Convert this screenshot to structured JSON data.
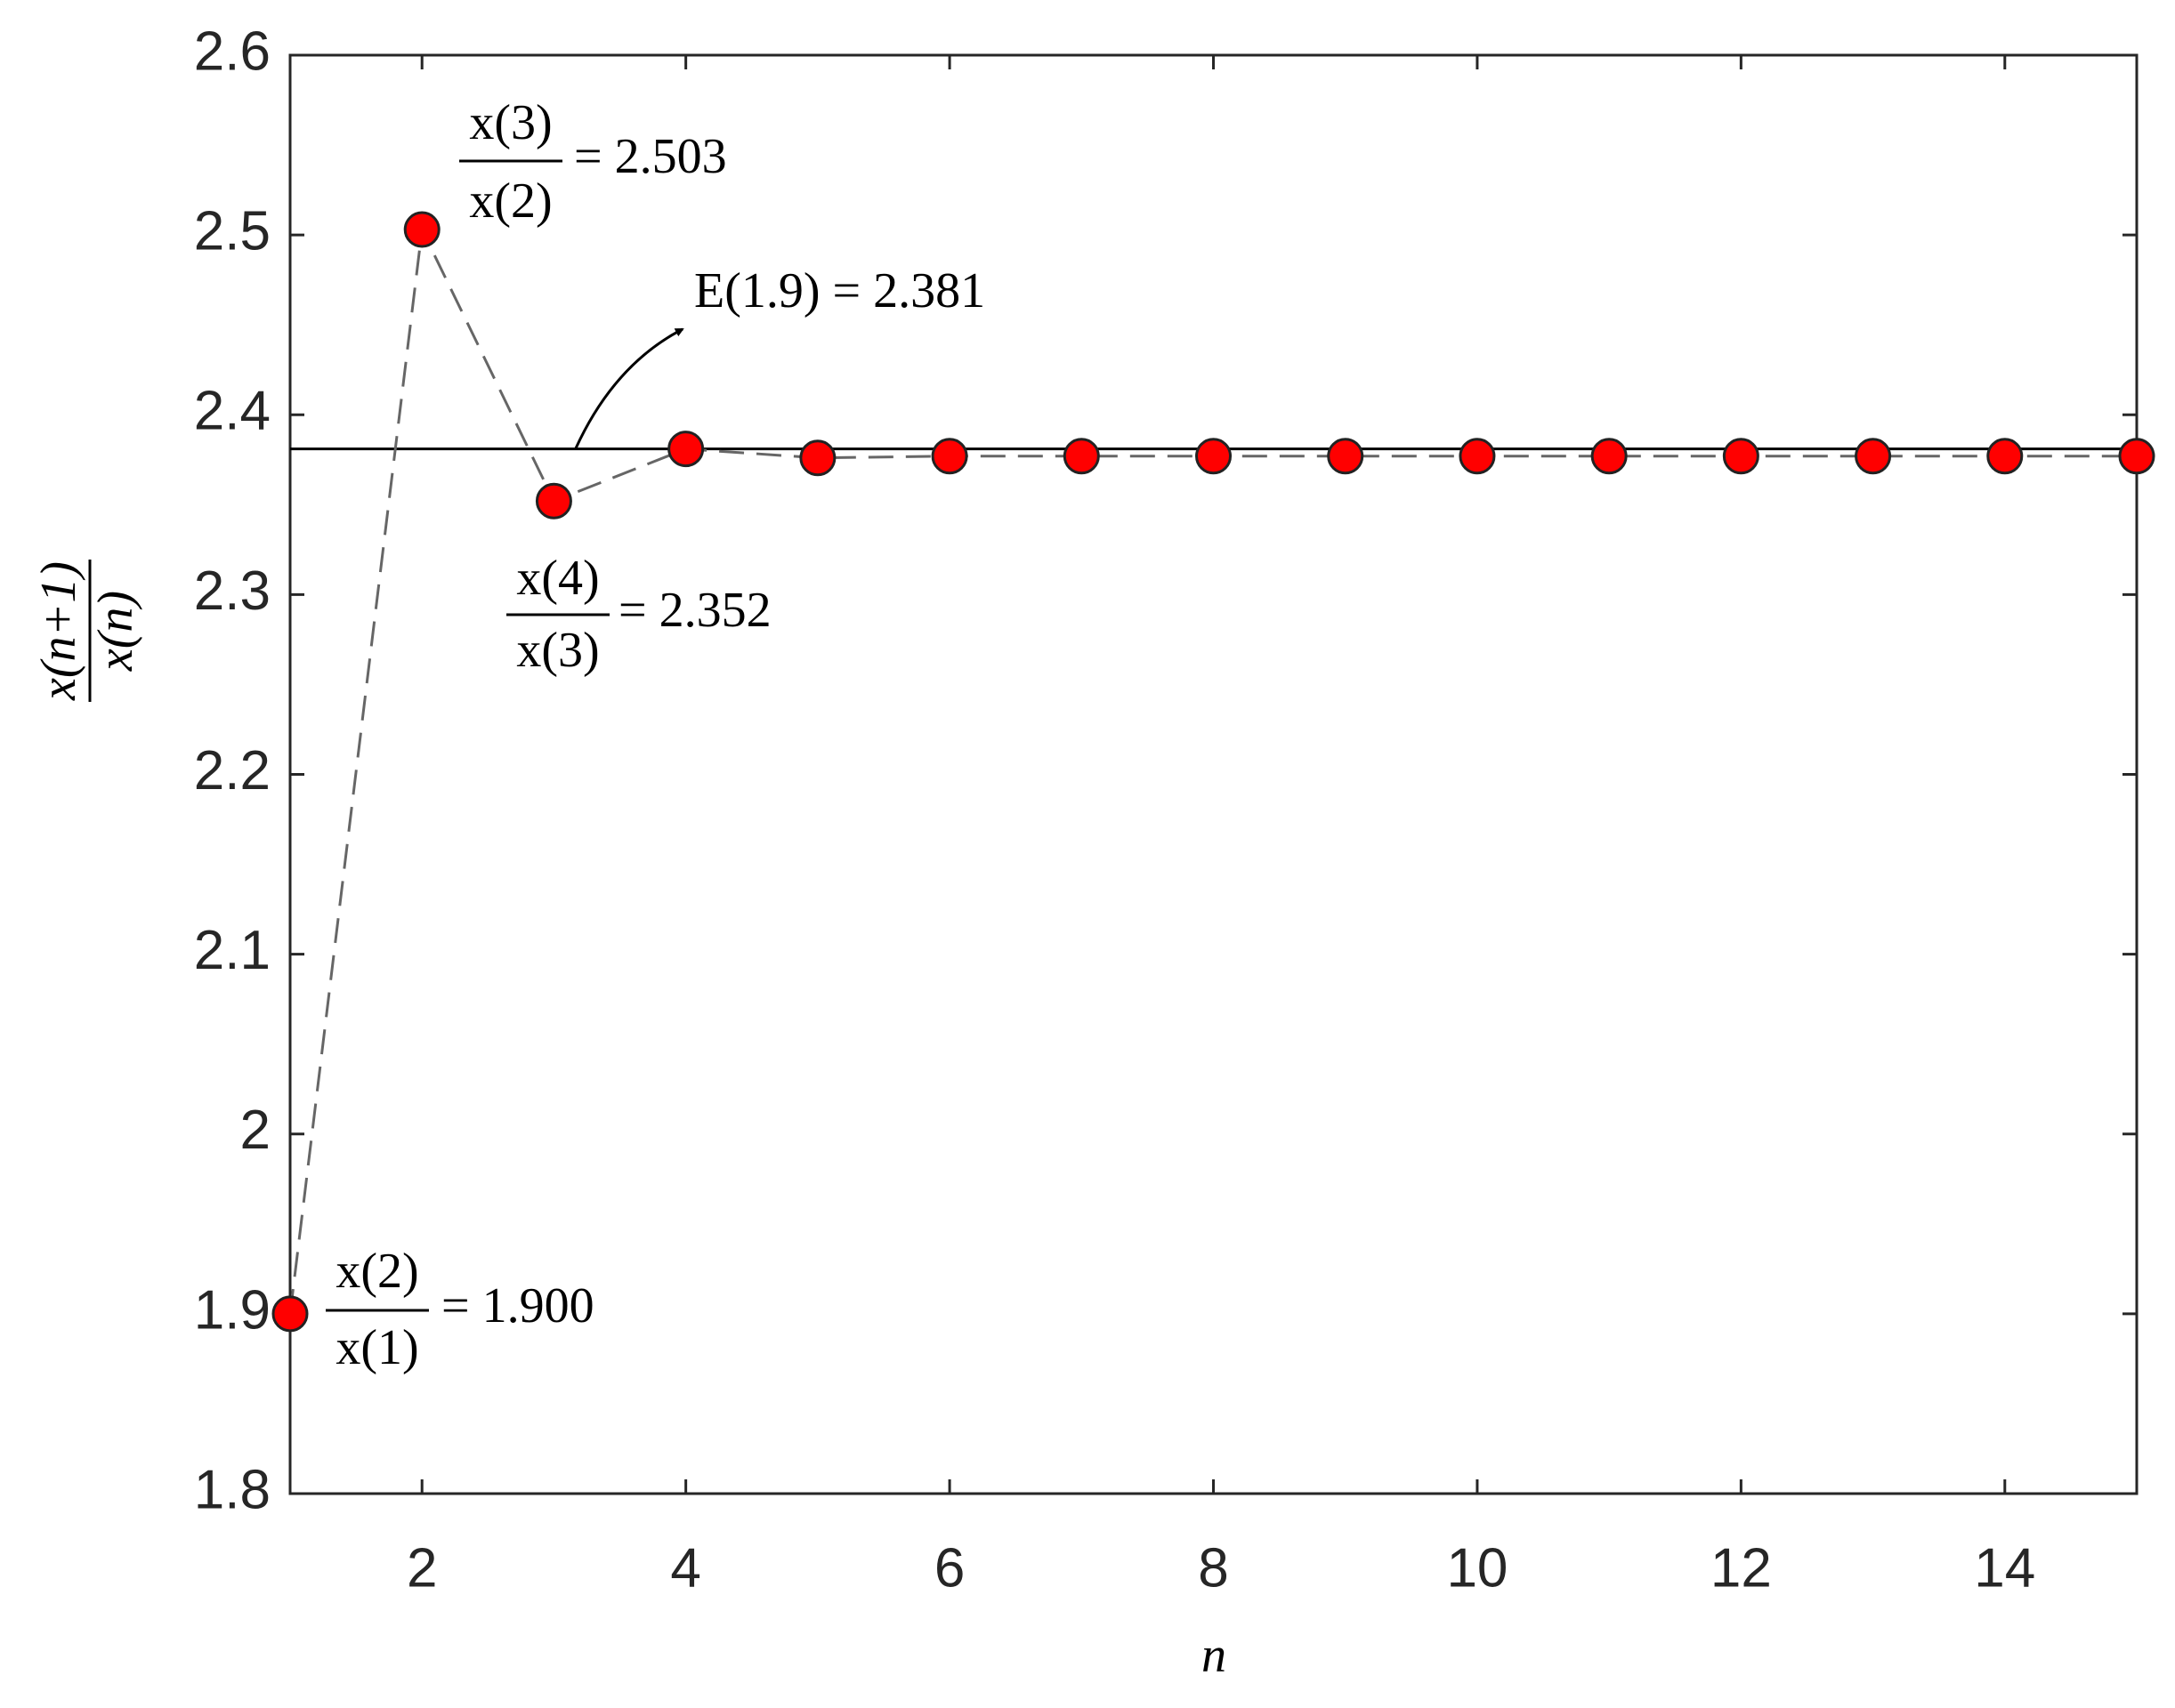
{
  "chart_data": {
    "type": "line",
    "x": [
      1,
      2,
      3,
      4,
      5,
      6,
      7,
      8,
      9,
      10,
      11,
      12,
      13,
      14,
      15
    ],
    "series": [
      {
        "color": "#ff0000",
        "values": [
          1.9,
          2.503,
          2.352,
          2.381,
          2.376,
          2.377,
          2.377,
          2.377,
          2.377,
          2.377,
          2.377,
          2.377,
          2.377,
          2.377,
          2.377
        ]
      }
    ],
    "reference_line": 2.381,
    "xlim": [
      1,
      15
    ],
    "xticks": [
      2,
      4,
      6,
      8,
      10,
      12,
      14
    ],
    "ylim": [
      1.8,
      2.6
    ],
    "yticks": [
      1.8,
      1.9,
      2,
      2.1,
      2.2,
      2.3,
      2.4,
      2.5,
      2.6
    ],
    "xlabel": "n",
    "ylabel": {
      "numerator": "x(n+1)",
      "denominator": "x(n)"
    },
    "annotations": [
      {
        "numerator": "x(2)",
        "denominator": "x(1)",
        "text": "= 1.900"
      },
      {
        "numerator": "x(3)",
        "denominator": "x(2)",
        "text": "= 2.503"
      },
      {
        "numerator": "x(4)",
        "denominator": "x(3)",
        "text": "= 2.352"
      },
      {
        "text": "E(1.9) = 2.381"
      }
    ]
  }
}
